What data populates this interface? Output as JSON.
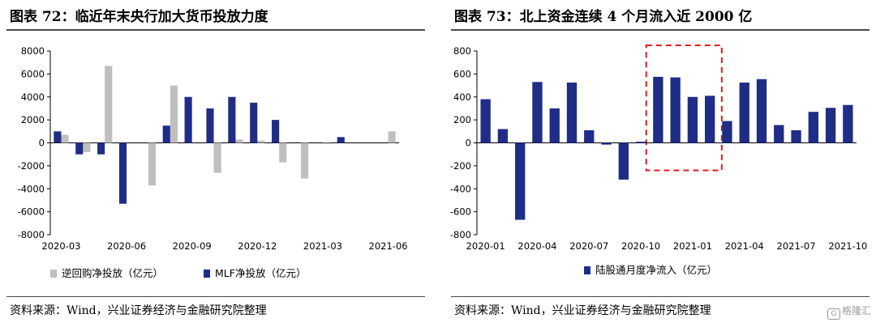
{
  "charts": [
    {
      "title": "图表 72：临近年末央行加大货币投放力度",
      "source": "资料来源：Wind，兴业证券经济与金融研究院整理"
    },
    {
      "title": "图表 73：北上资金连续 4 个月流入近 2000 亿",
      "source": "资料来源：Wind，兴业证券经济与金融研究院整理"
    }
  ],
  "watermark": {
    "icon": "G",
    "text": "格隆汇"
  },
  "colors": {
    "navy": "#1f2d86",
    "gray": "#bfbfbf",
    "highlight": "#e0191d"
  },
  "chart_data": [
    {
      "type": "bar",
      "title": "",
      "categories": [
        "2020-03",
        "2020-04",
        "2020-05",
        "2020-06",
        "2020-07",
        "2020-08",
        "2020-09",
        "2020-10",
        "2020-11",
        "2020-12",
        "2021-01",
        "2021-02",
        "2021-03",
        "2021-04",
        "2021-05",
        "2021-06"
      ],
      "x_tick_labels": [
        "2020-03",
        "2020-06",
        "2020-09",
        "2020-12",
        "2021-03",
        "2021-06"
      ],
      "series": [
        {
          "name": "逆回购净投放（亿元）",
          "color": "#bfbfbf",
          "values": [
            700,
            -800,
            6700,
            0,
            -3700,
            5000,
            0,
            -2600,
            300,
            200,
            -1700,
            -3100,
            -100,
            0,
            0,
            1000
          ]
        },
        {
          "name": "MLF净投放（亿元）",
          "color": "#1f2d86",
          "values": [
            1000,
            -1000,
            -1000,
            -5300,
            0,
            1500,
            4000,
            3000,
            4000,
            3500,
            2000,
            0,
            0,
            500,
            0,
            0
          ]
        }
      ],
      "ylim": [
        -8000,
        8000
      ],
      "y_ticks": [
        "8000",
        "6000",
        "4000",
        "2000",
        "0",
        "-2000",
        "-4000",
        "-6000",
        "-8000"
      ],
      "xlabel": "",
      "ylabel": "",
      "legend": "bottom",
      "grid": false
    },
    {
      "type": "bar",
      "title": "",
      "categories": [
        "2020-01",
        "2020-02",
        "2020-03",
        "2020-04",
        "2020-05",
        "2020-06",
        "2020-07",
        "2020-08",
        "2020-09",
        "2020-10",
        "2020-11",
        "2020-12",
        "2021-01",
        "2021-02",
        "2021-03",
        "2021-04",
        "2021-05",
        "2021-06",
        "2021-07",
        "2021-08",
        "2021-09",
        "2021-10"
      ],
      "x_tick_labels": [
        "2020-01",
        "2020-04",
        "2020-07",
        "2020-10",
        "2021-01",
        "2021-04",
        "2021-07",
        "2021-10"
      ],
      "series": [
        {
          "name": "陆股通月度净流入（亿元）",
          "color": "#1f2d86",
          "values": [
            380,
            120,
            -670,
            530,
            300,
            525,
            110,
            -15,
            -320,
            10,
            575,
            570,
            400,
            410,
            190,
            525,
            555,
            155,
            110,
            270,
            305,
            330
          ]
        }
      ],
      "ylim": [
        -800,
        800
      ],
      "y_ticks": [
        "800",
        "600",
        "400",
        "200",
        "0",
        "-200",
        "-400",
        "-600",
        "-800"
      ],
      "xlabel": "",
      "ylabel": "",
      "legend": "bottom",
      "grid": false,
      "highlight_range": [
        "2020-11",
        "2021-02"
      ]
    }
  ]
}
